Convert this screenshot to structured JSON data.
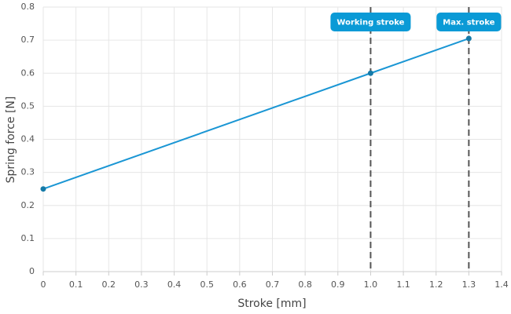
{
  "chart_data": {
    "type": "line",
    "xlabel": "Stroke [mm]",
    "ylabel": "Spring force [N]",
    "x": [
      0,
      1,
      1.3
    ],
    "series": [
      {
        "name": "Spring force",
        "color": "#1a96d4",
        "values": [
          0.25,
          0.6,
          0.705
        ]
      }
    ],
    "xlim": [
      0,
      1.4
    ],
    "ylim": [
      0,
      0.8
    ],
    "xticks": [
      0,
      0.1,
      0.2,
      0.3,
      0.4,
      0.5,
      0.6,
      0.7,
      0.8,
      0.9,
      {
        "value": 1,
        "label": "1.0"
      },
      1.1,
      1.2,
      1.3,
      1.4
    ],
    "yticks": [
      0,
      0.1,
      0.2,
      0.3,
      0.4,
      0.5,
      0.6,
      0.7,
      0.8
    ],
    "grid": true,
    "annotations": [
      {
        "x": 1,
        "label": "Working stroke"
      },
      {
        "x": 1.3,
        "label": "Max. stroke"
      }
    ]
  }
}
